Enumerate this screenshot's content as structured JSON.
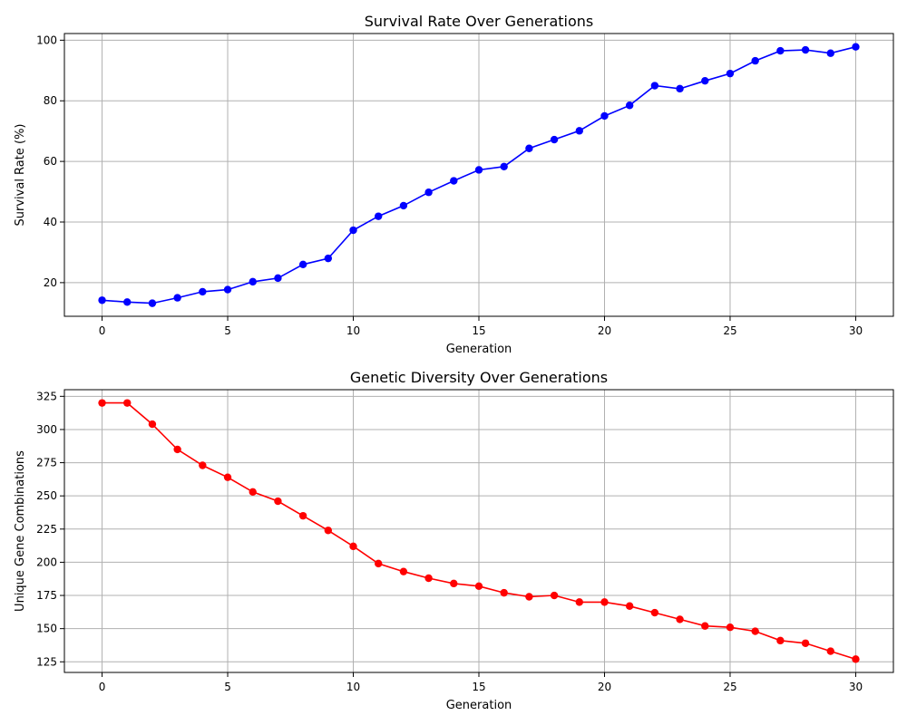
{
  "chart_data": [
    {
      "type": "line",
      "title": "Survival Rate Over Generations",
      "xlabel": "Generation",
      "ylabel": "Survival Rate (%)",
      "xlim": [
        -1.5,
        31.5
      ],
      "ylim": [
        8.9,
        102.2
      ],
      "xticks": [
        0,
        5,
        10,
        15,
        20,
        25,
        30
      ],
      "yticks": [
        20,
        40,
        60,
        80,
        100
      ],
      "grid": true,
      "series": [
        {
          "color": "#0000ff",
          "marker": "circle",
          "x": [
            0,
            1,
            2,
            3,
            4,
            5,
            6,
            7,
            8,
            9,
            10,
            11,
            12,
            13,
            14,
            15,
            16,
            17,
            18,
            19,
            20,
            21,
            22,
            23,
            24,
            25,
            26,
            27,
            28,
            29,
            30
          ],
          "y": [
            14.2,
            13.6,
            13.2,
            15.0,
            17.0,
            17.7,
            20.3,
            21.5,
            26.0,
            28.0,
            37.3,
            41.9,
            45.4,
            49.8,
            53.6,
            57.2,
            58.3,
            64.3,
            67.2,
            70.1,
            75.0,
            78.5,
            85.0,
            84.0,
            86.6,
            89.0,
            93.2,
            96.5,
            96.8,
            95.7,
            97.8
          ]
        }
      ]
    },
    {
      "type": "line",
      "title": "Genetic Diversity Over Generations",
      "xlabel": "Generation",
      "ylabel": "Unique Gene Combinations",
      "xlim": [
        -1.5,
        31.5
      ],
      "ylim": [
        117,
        330
      ],
      "xticks": [
        0,
        5,
        10,
        15,
        20,
        25,
        30
      ],
      "yticks": [
        125,
        150,
        175,
        200,
        225,
        250,
        275,
        300,
        325
      ],
      "grid": true,
      "series": [
        {
          "color": "#ff0000",
          "marker": "circle",
          "x": [
            0,
            1,
            2,
            3,
            4,
            5,
            6,
            7,
            8,
            9,
            10,
            11,
            12,
            13,
            14,
            15,
            16,
            17,
            18,
            19,
            20,
            21,
            22,
            23,
            24,
            25,
            26,
            27,
            28,
            29,
            30
          ],
          "y": [
            320,
            320,
            304,
            285,
            273,
            264,
            253,
            246,
            235,
            224,
            212,
            199,
            193,
            188,
            184,
            182,
            177,
            174,
            175,
            170,
            170,
            167,
            162,
            157,
            152,
            151,
            148,
            141,
            139,
            133,
            127
          ]
        }
      ]
    }
  ]
}
